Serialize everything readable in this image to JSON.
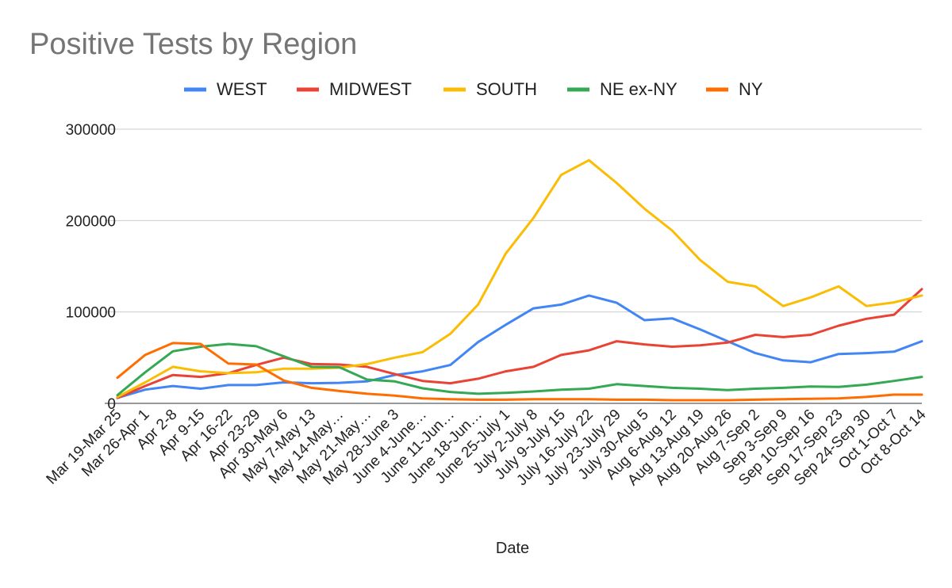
{
  "chart_data": {
    "type": "line",
    "title": "Positive Tests by Region",
    "xlabel": "Date",
    "ylabel": "",
    "ylim": [
      0,
      300000
    ],
    "yticks": [
      0,
      100000,
      200000,
      300000
    ],
    "ytick_labels": [
      "0",
      "100000",
      "200000",
      "300000"
    ],
    "grid": true,
    "legend_position": "top",
    "categories": [
      "Mar 19-Mar 25",
      "Mar 26-Apr 1",
      "Apr 2-8",
      "Apr 9-15",
      "Apr 16-22",
      "Apr 23-29",
      "Apr 30-May 6",
      "May 7-May 13",
      "May 14-May…",
      "May 21-May…",
      "May 28-June 3",
      "June 4-June…",
      "June 11-Jun…",
      "June 18-Jun…",
      "June 25-July 1",
      "July 2-July 8",
      "July 9-July 15",
      "July 16-July 22",
      "July 23-July 29",
      "July 30-Aug 5",
      "Aug 6-Aug 12",
      "Aug 13-Aug 19",
      "Aug 20-Aug 26",
      "Aug 7-Sep 2",
      "Sep 3-Sep 9",
      "Sep 10-Sep 16",
      "Sep 17-Sep 23",
      "Sep 24-Sep 30",
      "Oct 1-Oct 7",
      "Oct 8-Oct 14"
    ],
    "series": [
      {
        "name": "WEST",
        "color": "#4285f4",
        "values": [
          6000,
          15000,
          19000,
          16000,
          20000,
          20000,
          23000,
          22000,
          22500,
          24000,
          31000,
          35000,
          42000,
          67000,
          86000,
          104000,
          108000,
          118000,
          110000,
          91000,
          93000,
          81000,
          68000,
          55000,
          47000,
          45000,
          54000,
          55000,
          56500,
          68000
        ]
      },
      {
        "name": "MIDWEST",
        "color": "#ea4335",
        "values": [
          6000,
          19000,
          31000,
          29000,
          33000,
          42000,
          50000,
          43000,
          42500,
          40000,
          32000,
          24500,
          22000,
          27000,
          35000,
          40000,
          53000,
          58000,
          68000,
          64500,
          62000,
          63500,
          66500,
          75000,
          72500,
          75000,
          85000,
          92500,
          97000,
          125000
        ]
      },
      {
        "name": "SOUTH",
        "color": "#fbbc04",
        "values": [
          7000,
          23000,
          40000,
          35000,
          33000,
          34000,
          38000,
          38000,
          39000,
          43000,
          50000,
          56000,
          76000,
          108000,
          164000,
          203000,
          250000,
          266000,
          241000,
          213000,
          189000,
          157000,
          133000,
          128000,
          106500,
          116000,
          128000,
          106500,
          110500,
          118000
        ]
      },
      {
        "name": "NE ex-NY",
        "color": "#34a853",
        "values": [
          9000,
          34000,
          57000,
          62000,
          65000,
          62500,
          51500,
          40000,
          39500,
          26000,
          24000,
          16500,
          12500,
          10500,
          11500,
          13000,
          15000,
          16000,
          21000,
          19000,
          17000,
          16000,
          14500,
          16000,
          17000,
          18500,
          18000,
          20500,
          24500,
          29000
        ]
      },
      {
        "name": "NY",
        "color": "#ff6d01",
        "values": [
          28000,
          53000,
          66000,
          65000,
          43500,
          42500,
          25000,
          17000,
          13500,
          10500,
          8500,
          5500,
          4500,
          4000,
          4000,
          4500,
          4500,
          4500,
          4000,
          4000,
          3500,
          3500,
          3500,
          4000,
          4500,
          5000,
          5500,
          7000,
          9500,
          9500
        ]
      }
    ]
  }
}
